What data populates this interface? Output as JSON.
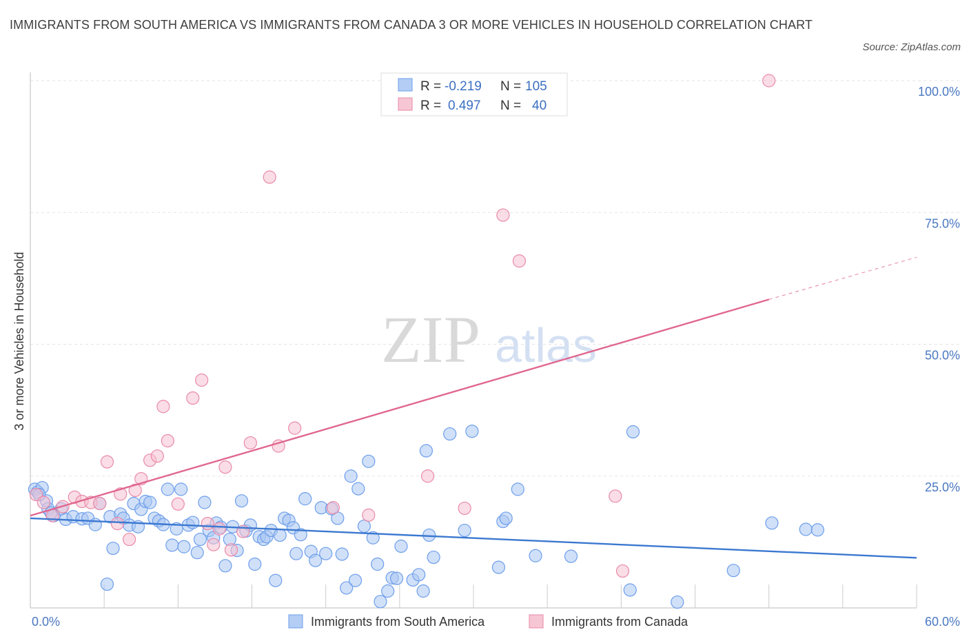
{
  "title": "IMMIGRANTS FROM SOUTH AMERICA VS IMMIGRANTS FROM CANADA 3 OR MORE VEHICLES IN HOUSEHOLD CORRELATION CHART",
  "source": "Source: ZipAtlas.com",
  "watermark": {
    "zip": "ZIP",
    "atlas": "atlas"
  },
  "colors": {
    "blue": "#6d9eeb",
    "blue_fill": "#a9c7f3",
    "blue_line": "#3b78d0",
    "pink": "#e98aa8",
    "pink_fill": "#f6c1d1",
    "pink_line": "#e06790",
    "tick": "#4a78c2"
  },
  "legend": {
    "rows": [
      {
        "r_label": "R =",
        "r_value": "-0.219",
        "n_label": "N =",
        "n_value": "105"
      },
      {
        "r_label": "R =",
        "r_value": "0.497",
        "n_label": "N =",
        "n_value": "40"
      }
    ]
  },
  "bottom_legend": [
    "Immigrants from South America",
    "Immigrants from Canada"
  ],
  "chart_data": {
    "type": "scatter",
    "ylabel": "3 or more Vehicles in Household",
    "xlabel": "",
    "xlim": [
      0,
      60
    ],
    "ylim": [
      0,
      100
    ],
    "x_tick_labels": [
      {
        "value": 0,
        "label": "0.0%"
      },
      {
        "value": 60,
        "label": "60.0%"
      }
    ],
    "y_tick_labels": [
      {
        "value": 25,
        "label": "25.0%"
      },
      {
        "value": 50,
        "label": "50.0%"
      },
      {
        "value": 75,
        "label": "75.0%"
      },
      {
        "value": 100,
        "label": "100.0%"
      }
    ],
    "grid": "horizontal dashed",
    "legend_position": "top-center",
    "series": [
      {
        "name": "Immigrants from South America",
        "r": -0.219,
        "n": 105,
        "trend": {
          "x": [
            0,
            60
          ],
          "y": [
            17.0,
            9.5
          ]
        },
        "points": [
          [
            0.3,
            22.5
          ],
          [
            0.5,
            22.0
          ],
          [
            0.8,
            22.8
          ],
          [
            1.1,
            20.3
          ],
          [
            1.2,
            18.8
          ],
          [
            1.6,
            17.5
          ],
          [
            2.1,
            18.8
          ],
          [
            2.4,
            16.8
          ],
          [
            2.9,
            17.3
          ],
          [
            3.5,
            16.9
          ],
          [
            3.9,
            17.0
          ],
          [
            4.4,
            15.8
          ],
          [
            4.7,
            19.8
          ],
          [
            5.2,
            4.5
          ],
          [
            5.4,
            17.3
          ],
          [
            5.6,
            11.3
          ],
          [
            6.1,
            17.8
          ],
          [
            6.3,
            17.0
          ],
          [
            6.7,
            15.7
          ],
          [
            7.0,
            19.8
          ],
          [
            7.3,
            15.4
          ],
          [
            7.5,
            18.7
          ],
          [
            7.8,
            20.2
          ],
          [
            8.1,
            20.0
          ],
          [
            8.4,
            17.0
          ],
          [
            8.7,
            16.5
          ],
          [
            9.0,
            15.8
          ],
          [
            9.3,
            22.5
          ],
          [
            9.6,
            11.9
          ],
          [
            9.9,
            15.0
          ],
          [
            10.2,
            22.5
          ],
          [
            10.4,
            11.6
          ],
          [
            10.7,
            15.7
          ],
          [
            11.0,
            16.2
          ],
          [
            11.3,
            10.5
          ],
          [
            11.5,
            13.0
          ],
          [
            11.8,
            20.0
          ],
          [
            12.1,
            14.7
          ],
          [
            12.4,
            13.3
          ],
          [
            12.6,
            16.1
          ],
          [
            12.9,
            15.3
          ],
          [
            13.2,
            8.0
          ],
          [
            13.5,
            13.0
          ],
          [
            13.7,
            15.4
          ],
          [
            14.0,
            10.9
          ],
          [
            14.3,
            20.3
          ],
          [
            14.6,
            14.6
          ],
          [
            14.9,
            15.7
          ],
          [
            15.2,
            8.3
          ],
          [
            15.5,
            13.5
          ],
          [
            15.8,
            13.0
          ],
          [
            16.0,
            13.5
          ],
          [
            16.3,
            14.7
          ],
          [
            16.6,
            5.2
          ],
          [
            16.9,
            13.8
          ],
          [
            17.2,
            17.0
          ],
          [
            17.5,
            16.6
          ],
          [
            17.8,
            15.2
          ],
          [
            18.0,
            10.3
          ],
          [
            18.3,
            13.9
          ],
          [
            18.6,
            20.7
          ],
          [
            19.0,
            10.7
          ],
          [
            19.3,
            9.0
          ],
          [
            19.7,
            19.0
          ],
          [
            20.0,
            10.3
          ],
          [
            20.4,
            18.8
          ],
          [
            20.8,
            17.0
          ],
          [
            21.1,
            10.2
          ],
          [
            21.4,
            3.8
          ],
          [
            21.7,
            25.0
          ],
          [
            22.0,
            5.2
          ],
          [
            22.2,
            22.6
          ],
          [
            22.6,
            15.5
          ],
          [
            22.9,
            27.8
          ],
          [
            23.2,
            13.3
          ],
          [
            23.5,
            8.3
          ],
          [
            23.7,
            1.2
          ],
          [
            24.2,
            3.2
          ],
          [
            24.5,
            5.7
          ],
          [
            24.8,
            5.6
          ],
          [
            25.1,
            11.7
          ],
          [
            25.9,
            5.3
          ],
          [
            26.3,
            6.3
          ],
          [
            26.6,
            3.2
          ],
          [
            26.8,
            29.8
          ],
          [
            27.0,
            13.8
          ],
          [
            27.3,
            9.6
          ],
          [
            28.4,
            33.0
          ],
          [
            29.4,
            14.7
          ],
          [
            29.9,
            33.5
          ],
          [
            31.7,
            7.7
          ],
          [
            32.0,
            16.4
          ],
          [
            32.2,
            17.0
          ],
          [
            33.0,
            22.5
          ],
          [
            34.2,
            9.9
          ],
          [
            36.6,
            9.8
          ],
          [
            40.6,
            3.4
          ],
          [
            40.8,
            33.4
          ],
          [
            43.8,
            1.1
          ],
          [
            47.6,
            7.1
          ],
          [
            50.2,
            16.1
          ],
          [
            52.5,
            14.9
          ],
          [
            53.3,
            14.8
          ],
          [
            0.6,
            21.5
          ],
          [
            1.4,
            18.0
          ]
        ]
      },
      {
        "name": "Immigrants from Canada",
        "r": 0.497,
        "n": 40,
        "trend": {
          "x": [
            0,
            50
          ],
          "y": [
            17.5,
            58.5
          ]
        },
        "trend_dashed": {
          "x": [
            50,
            60
          ],
          "y": [
            58.5,
            66.5
          ]
        },
        "points": [
          [
            0.4,
            21.5
          ],
          [
            0.9,
            20.0
          ],
          [
            1.5,
            17.5
          ],
          [
            2.2,
            19.2
          ],
          [
            3.0,
            21.0
          ],
          [
            3.5,
            20.2
          ],
          [
            4.1,
            20.0
          ],
          [
            4.7,
            19.8
          ],
          [
            5.2,
            27.7
          ],
          [
            5.9,
            16.0
          ],
          [
            6.1,
            21.6
          ],
          [
            6.7,
            13.0
          ],
          [
            7.1,
            22.3
          ],
          [
            7.5,
            24.5
          ],
          [
            8.1,
            28.0
          ],
          [
            8.6,
            28.8
          ],
          [
            9.0,
            38.2
          ],
          [
            9.3,
            31.7
          ],
          [
            10.0,
            19.7
          ],
          [
            11.0,
            39.8
          ],
          [
            11.6,
            43.2
          ],
          [
            12.0,
            16.0
          ],
          [
            12.4,
            12.0
          ],
          [
            13.2,
            26.7
          ],
          [
            13.6,
            11.0
          ],
          [
            14.4,
            14.5
          ],
          [
            14.9,
            31.3
          ],
          [
            16.2,
            81.7
          ],
          [
            16.8,
            30.7
          ],
          [
            17.9,
            34.1
          ],
          [
            20.5,
            19.0
          ],
          [
            22.9,
            17.6
          ],
          [
            26.9,
            25.0
          ],
          [
            29.4,
            18.9
          ],
          [
            32.0,
            74.5
          ],
          [
            33.1,
            65.8
          ],
          [
            39.6,
            21.2
          ],
          [
            40.1,
            7.0
          ],
          [
            50.0,
            100.0
          ],
          [
            12.8,
            15.0
          ]
        ]
      }
    ]
  }
}
